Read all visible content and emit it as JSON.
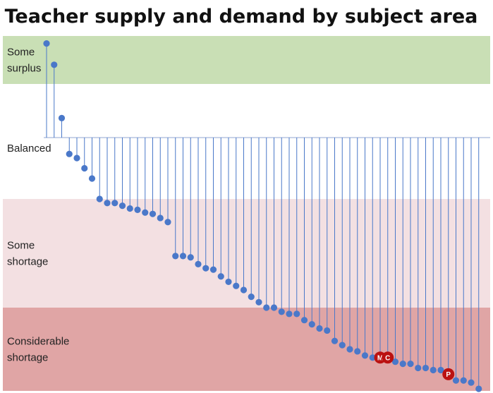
{
  "chart_data": {
    "type": "lollipop",
    "title": "Teacher supply and demand by subject area",
    "xlabel": "",
    "ylabel": "",
    "grid": false,
    "legend": "none",
    "bands": [
      {
        "id": "surplus",
        "lines": [
          "Some",
          "surplus"
        ],
        "from": 0.55,
        "to": 1.0,
        "color": "#c9dfb5"
      },
      {
        "id": "balanced",
        "lines": [
          "Balanced"
        ],
        "from": -0.3,
        "to": 0.55,
        "color": "#ffffff"
      },
      {
        "id": "shortage",
        "lines": [
          "Some",
          "shortage"
        ],
        "from": -1.1,
        "to": -0.3,
        "color": "#f3e0e2"
      },
      {
        "id": "considerable",
        "lines": [
          "Considerable",
          "shortage"
        ],
        "from": -1.5,
        "to": -1.1,
        "color": "#e0a5a5"
      }
    ],
    "baseline": 0,
    "ylim": [
      -1.5,
      1.0
    ],
    "point_color": "#4a78c9",
    "highlight_color": "#bb1111",
    "values": [
      0.93,
      0.73,
      0.2,
      -0.08,
      -0.1,
      -0.15,
      -0.2,
      -0.3,
      -0.33,
      -0.33,
      -0.35,
      -0.37,
      -0.38,
      -0.4,
      -0.41,
      -0.44,
      -0.47,
      -0.72,
      -0.72,
      -0.73,
      -0.78,
      -0.81,
      -0.82,
      -0.87,
      -0.91,
      -0.94,
      -0.97,
      -1.02,
      -1.06,
      -1.1,
      -1.1,
      -1.12,
      -1.13,
      -1.13,
      -1.16,
      -1.18,
      -1.2,
      -1.21,
      -1.26,
      -1.28,
      -1.3,
      -1.31,
      -1.33,
      -1.34,
      -1.34,
      -1.34,
      -1.36,
      -1.37,
      -1.37,
      -1.39,
      -1.39,
      -1.4,
      -1.4,
      -1.42,
      -1.45,
      -1.45,
      -1.46,
      -1.49
    ],
    "highlights": [
      {
        "index": 44,
        "label": "M"
      },
      {
        "index": 45,
        "label": "C"
      },
      {
        "index": 53,
        "label": "P"
      }
    ]
  }
}
